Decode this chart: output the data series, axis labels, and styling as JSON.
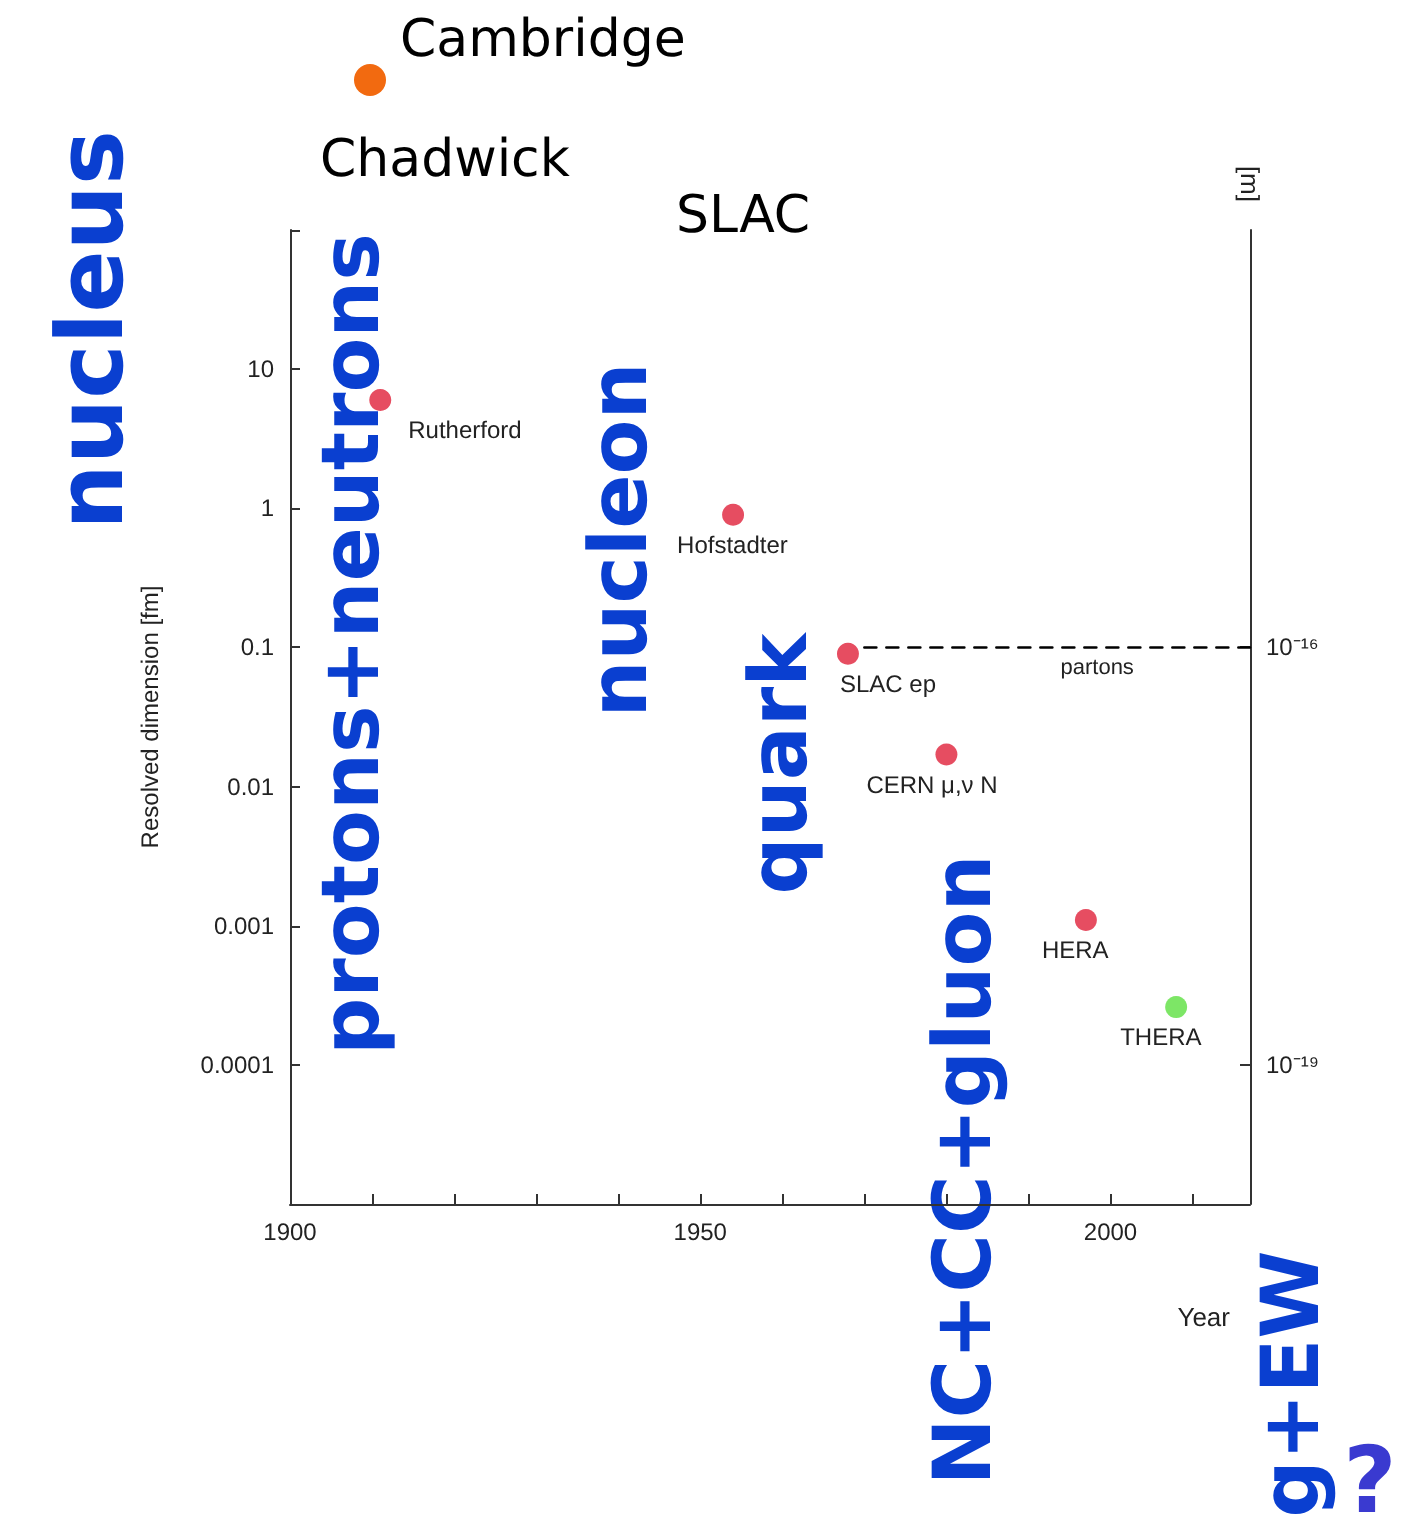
{
  "chart_data": {
    "type": "scatter",
    "xlabel": "Year",
    "ylabel": "Resolved dimension [fm]",
    "y2label": "[m]",
    "xlim": [
      1900,
      2017
    ],
    "xticks": [
      1900,
      {
        "value": 1910,
        "label": null
      },
      {
        "value": 1920,
        "label": null
      },
      {
        "value": 1930,
        "label": null
      },
      {
        "value": 1940,
        "label": null
      },
      1950,
      {
        "value": 1960,
        "label": null
      },
      {
        "value": 1970,
        "label": null
      },
      {
        "value": 1980,
        "label": null
      },
      {
        "value": 1990,
        "label": null
      },
      2000,
      {
        "value": 2010,
        "label": null
      }
    ],
    "ylim": [
      1e-05,
      100
    ],
    "yticks": [
      {
        "value": 1e-05,
        "label": null
      },
      0.0001,
      0.001,
      0.01,
      0.1,
      1,
      10,
      {
        "value": 100,
        "label": null
      }
    ],
    "y2lim": [
      1e-20,
      1e-13
    ],
    "y2ticks": [
      {
        "value": 1e-19,
        "label": "10⁻¹⁹"
      },
      {
        "value": 1e-16,
        "label": "10⁻¹⁶"
      }
    ],
    "log": "y",
    "grid": false,
    "legend": false,
    "marker": "circle",
    "series": [
      {
        "color": "#e0203a",
        "x": [
          1911,
          1954,
          1968,
          1980,
          1997
        ],
        "values": [
          6,
          0.9,
          0.09,
          0.017,
          0.0011
        ]
      },
      {
        "color": "#5ce040",
        "x": [
          2008
        ],
        "values": [
          0.00026
        ]
      },
      {
        "type": "line",
        "name": "partons",
        "color": "#000000",
        "line_style": "dashed",
        "marker": "none",
        "x": [
          1970,
          2017
        ],
        "values": [
          0.1,
          0.1
        ]
      }
    ],
    "annotations": [
      {
        "text": "Rutherford",
        "x": 1911,
        "y": 6
      },
      {
        "text": "Hofstadter",
        "x": 1954,
        "y": 0.9
      },
      {
        "text": "SLAC ep",
        "x": 1968,
        "y": 0.09
      },
      {
        "text": "CERN μ,ν N",
        "x": 1980,
        "y": 0.017
      },
      {
        "text": "HERA",
        "x": 1997,
        "y": 0.0011
      },
      {
        "text": "THERA",
        "x": 2008,
        "y": 0.00026
      },
      "Cambridge",
      "Chadwick",
      "SLAC",
      "nucleus",
      "protons+neutrons",
      "nucleon",
      "quark",
      "NC+CC+gluon",
      "g+EW",
      "?"
    ]
  }
}
